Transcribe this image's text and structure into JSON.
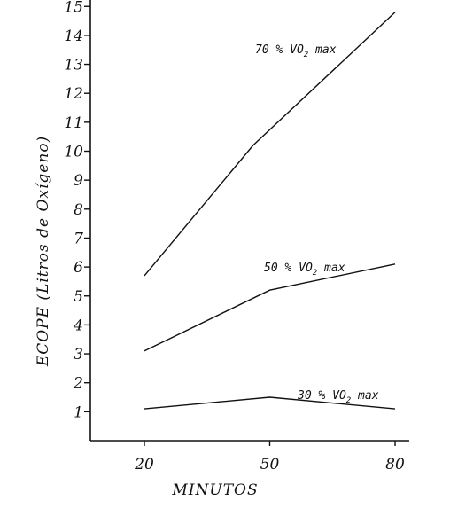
{
  "chart_data": {
    "type": "line",
    "title": "",
    "xlabel": "MINUTOS",
    "ylabel": "ECOPE (Litros de Oxígeno)",
    "x": [
      20,
      50,
      80
    ],
    "x_tick_labels": [
      "20",
      "50",
      "80"
    ],
    "y_tick_labels": [
      "1",
      "2",
      "3",
      "4",
      "5",
      "6",
      "7",
      "8",
      "9",
      "10",
      "11",
      "12",
      "13",
      "14",
      "15"
    ],
    "ylim": [
      0,
      16
    ],
    "grid": false,
    "series": [
      {
        "name": "70 % VO2 max",
        "label_parts": [
          "70 % VO",
          "2",
          " max"
        ],
        "points": [
          [
            20,
            5.7
          ],
          [
            46,
            10.2
          ],
          [
            80,
            14.8
          ]
        ]
      },
      {
        "name": "50 % VO2 max",
        "label_parts": [
          "50 % VO",
          "2",
          " max"
        ],
        "points": [
          [
            20,
            3.1
          ],
          [
            50,
            5.2
          ],
          [
            80,
            6.1
          ]
        ]
      },
      {
        "name": "30 % VO2 max",
        "label_parts": [
          "30 % VO",
          "2",
          " max"
        ],
        "points": [
          [
            20,
            1.1
          ],
          [
            50,
            1.5
          ],
          [
            80,
            1.1
          ]
        ]
      }
    ]
  }
}
